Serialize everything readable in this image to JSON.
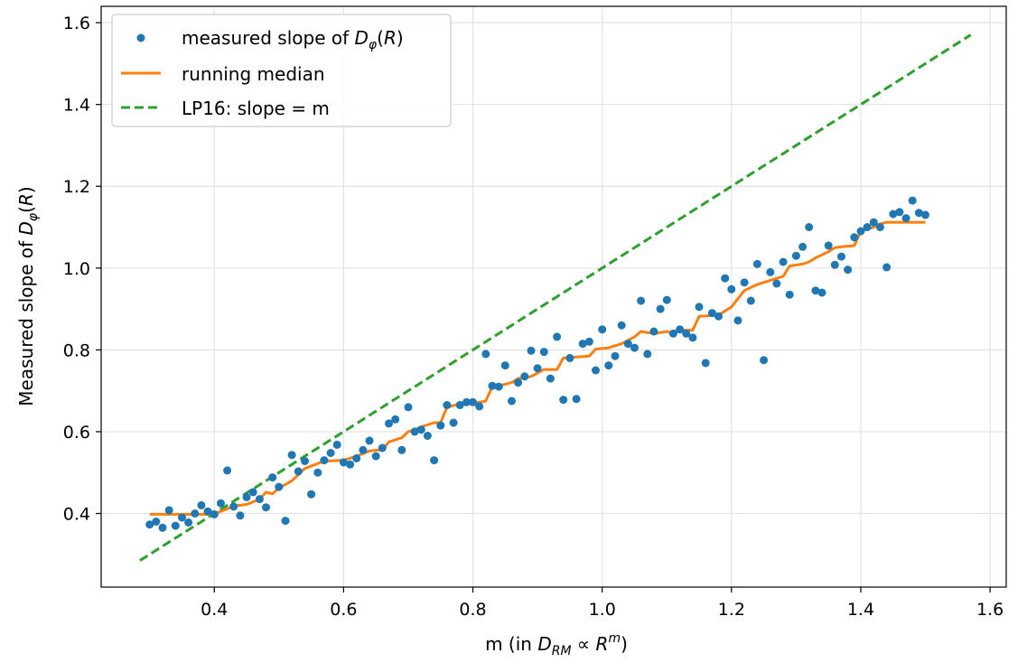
{
  "chart_data": {
    "type": "scatter",
    "xlabel": "m  (in D_RM ∝ R^m)",
    "ylabel": "Measured slope of D_φ(R)",
    "xlim": [
      0.225,
      1.625
    ],
    "ylim": [
      0.22,
      1.64
    ],
    "xticks": [
      0.4,
      0.6,
      0.8,
      1.0,
      1.2,
      1.4,
      1.6
    ],
    "yticks": [
      0.4,
      0.6,
      0.8,
      1.0,
      1.2,
      1.4,
      1.6
    ],
    "xtick_labels": [
      "0.4",
      "0.6",
      "0.8",
      "1.0",
      "1.2",
      "1.4",
      "1.6"
    ],
    "ytick_labels": [
      "0.4",
      "0.6",
      "0.8",
      "1.0",
      "1.2",
      "1.4",
      "1.6"
    ],
    "grid": true,
    "legend": {
      "position": "upper-left",
      "entries": [
        {
          "label": "measured slope of D_φ(R)",
          "marker": "dot",
          "color": "#1f77b4"
        },
        {
          "label": "running median",
          "marker": "solid-line",
          "color": "#ff7f0e"
        },
        {
          "label": "LP16: slope = m",
          "marker": "dashed-line",
          "color": "#2ca02c"
        }
      ]
    },
    "series": [
      {
        "name": "measured slope of D_φ(R)",
        "kind": "scatter",
        "color": "#1f77b4",
        "points": [
          [
            0.3,
            0.373
          ],
          [
            0.31,
            0.38
          ],
          [
            0.32,
            0.365
          ],
          [
            0.33,
            0.408
          ],
          [
            0.34,
            0.37
          ],
          [
            0.35,
            0.39
          ],
          [
            0.36,
            0.378
          ],
          [
            0.37,
            0.4
          ],
          [
            0.38,
            0.42
          ],
          [
            0.39,
            0.405
          ],
          [
            0.4,
            0.398
          ],
          [
            0.41,
            0.425
          ],
          [
            0.42,
            0.505
          ],
          [
            0.43,
            0.417
          ],
          [
            0.44,
            0.395
          ],
          [
            0.45,
            0.44
          ],
          [
            0.46,
            0.452
          ],
          [
            0.47,
            0.435
          ],
          [
            0.48,
            0.415
          ],
          [
            0.49,
            0.488
          ],
          [
            0.5,
            0.465
          ],
          [
            0.51,
            0.382
          ],
          [
            0.52,
            0.543
          ],
          [
            0.53,
            0.503
          ],
          [
            0.54,
            0.528
          ],
          [
            0.55,
            0.447
          ],
          [
            0.56,
            0.5
          ],
          [
            0.57,
            0.53
          ],
          [
            0.58,
            0.548
          ],
          [
            0.59,
            0.568
          ],
          [
            0.6,
            0.525
          ],
          [
            0.61,
            0.52
          ],
          [
            0.62,
            0.535
          ],
          [
            0.63,
            0.555
          ],
          [
            0.64,
            0.578
          ],
          [
            0.65,
            0.54
          ],
          [
            0.66,
            0.56
          ],
          [
            0.67,
            0.62
          ],
          [
            0.68,
            0.63
          ],
          [
            0.69,
            0.555
          ],
          [
            0.7,
            0.66
          ],
          [
            0.71,
            0.6
          ],
          [
            0.72,
            0.605
          ],
          [
            0.73,
            0.59
          ],
          [
            0.74,
            0.53
          ],
          [
            0.75,
            0.615
          ],
          [
            0.76,
            0.665
          ],
          [
            0.77,
            0.622
          ],
          [
            0.78,
            0.665
          ],
          [
            0.79,
            0.672
          ],
          [
            0.8,
            0.672
          ],
          [
            0.81,
            0.662
          ],
          [
            0.82,
            0.79
          ],
          [
            0.83,
            0.712
          ],
          [
            0.84,
            0.71
          ],
          [
            0.85,
            0.762
          ],
          [
            0.86,
            0.675
          ],
          [
            0.87,
            0.72
          ],
          [
            0.88,
            0.735
          ],
          [
            0.89,
            0.798
          ],
          [
            0.9,
            0.755
          ],
          [
            0.91,
            0.795
          ],
          [
            0.92,
            0.73
          ],
          [
            0.93,
            0.832
          ],
          [
            0.94,
            0.678
          ],
          [
            0.95,
            0.78
          ],
          [
            0.96,
            0.68
          ],
          [
            0.97,
            0.815
          ],
          [
            0.98,
            0.82
          ],
          [
            0.99,
            0.75
          ],
          [
            1.0,
            0.85
          ],
          [
            1.01,
            0.762
          ],
          [
            1.02,
            0.785
          ],
          [
            1.03,
            0.86
          ],
          [
            1.04,
            0.815
          ],
          [
            1.05,
            0.805
          ],
          [
            1.06,
            0.92
          ],
          [
            1.07,
            0.79
          ],
          [
            1.08,
            0.845
          ],
          [
            1.09,
            0.9
          ],
          [
            1.1,
            0.922
          ],
          [
            1.11,
            0.84
          ],
          [
            1.12,
            0.85
          ],
          [
            1.13,
            0.84
          ],
          [
            1.14,
            0.83
          ],
          [
            1.15,
            0.905
          ],
          [
            1.16,
            0.768
          ],
          [
            1.17,
            0.89
          ],
          [
            1.18,
            0.882
          ],
          [
            1.19,
            0.975
          ],
          [
            1.2,
            0.948
          ],
          [
            1.21,
            0.872
          ],
          [
            1.22,
            0.965
          ],
          [
            1.23,
            0.92
          ],
          [
            1.24,
            1.01
          ],
          [
            1.25,
            0.775
          ],
          [
            1.26,
            0.99
          ],
          [
            1.27,
            0.962
          ],
          [
            1.28,
            1.015
          ],
          [
            1.29,
            0.935
          ],
          [
            1.3,
            1.03
          ],
          [
            1.31,
            1.052
          ],
          [
            1.32,
            1.1
          ],
          [
            1.33,
            0.945
          ],
          [
            1.34,
            0.94
          ],
          [
            1.35,
            1.055
          ],
          [
            1.36,
            1.008
          ],
          [
            1.37,
            1.028
          ],
          [
            1.38,
            0.996
          ],
          [
            1.39,
            1.075
          ],
          [
            1.4,
            1.09
          ],
          [
            1.41,
            1.1
          ],
          [
            1.42,
            1.112
          ],
          [
            1.43,
            1.1
          ],
          [
            1.44,
            1.002
          ],
          [
            1.45,
            1.132
          ],
          [
            1.46,
            1.137
          ],
          [
            1.47,
            1.122
          ],
          [
            1.48,
            1.165
          ],
          [
            1.49,
            1.135
          ],
          [
            1.5,
            1.13
          ]
        ]
      },
      {
        "name": "running median",
        "kind": "line",
        "color": "#ff7f0e",
        "points": [
          [
            0.3,
            0.398
          ],
          [
            0.4,
            0.398
          ],
          [
            0.41,
            0.405
          ],
          [
            0.43,
            0.418
          ],
          [
            0.45,
            0.422
          ],
          [
            0.47,
            0.435
          ],
          [
            0.48,
            0.452
          ],
          [
            0.49,
            0.448
          ],
          [
            0.5,
            0.462
          ],
          [
            0.52,
            0.48
          ],
          [
            0.54,
            0.51
          ],
          [
            0.56,
            0.522
          ],
          [
            0.57,
            0.528
          ],
          [
            0.6,
            0.53
          ],
          [
            0.62,
            0.54
          ],
          [
            0.64,
            0.553
          ],
          [
            0.66,
            0.556
          ],
          [
            0.67,
            0.575
          ],
          [
            0.69,
            0.585
          ],
          [
            0.7,
            0.6
          ],
          [
            0.71,
            0.605
          ],
          [
            0.72,
            0.612
          ],
          [
            0.74,
            0.622
          ],
          [
            0.75,
            0.622
          ],
          [
            0.76,
            0.66
          ],
          [
            0.78,
            0.668
          ],
          [
            0.81,
            0.672
          ],
          [
            0.82,
            0.675
          ],
          [
            0.83,
            0.71
          ],
          [
            0.84,
            0.712
          ],
          [
            0.86,
            0.72
          ],
          [
            0.87,
            0.73
          ],
          [
            0.89,
            0.735
          ],
          [
            0.91,
            0.752
          ],
          [
            0.93,
            0.752
          ],
          [
            0.94,
            0.78
          ],
          [
            0.98,
            0.785
          ],
          [
            0.99,
            0.802
          ],
          [
            1.01,
            0.805
          ],
          [
            1.03,
            0.815
          ],
          [
            1.05,
            0.832
          ],
          [
            1.06,
            0.845
          ],
          [
            1.08,
            0.84
          ],
          [
            1.1,
            0.845
          ],
          [
            1.11,
            0.84
          ],
          [
            1.12,
            0.848
          ],
          [
            1.14,
            0.848
          ],
          [
            1.15,
            0.882
          ],
          [
            1.18,
            0.885
          ],
          [
            1.2,
            0.905
          ],
          [
            1.22,
            0.945
          ],
          [
            1.24,
            0.96
          ],
          [
            1.25,
            0.965
          ],
          [
            1.28,
            0.98
          ],
          [
            1.29,
            1.005
          ],
          [
            1.31,
            1.01
          ],
          [
            1.32,
            1.015
          ],
          [
            1.33,
            1.025
          ],
          [
            1.35,
            1.04
          ],
          [
            1.36,
            1.05
          ],
          [
            1.37,
            1.052
          ],
          [
            1.39,
            1.055
          ],
          [
            1.4,
            1.09
          ],
          [
            1.42,
            1.1
          ],
          [
            1.43,
            1.108
          ],
          [
            1.44,
            1.112
          ],
          [
            1.5,
            1.112
          ]
        ]
      },
      {
        "name": "LP16: slope = m",
        "kind": "dashed-line",
        "color": "#2ca02c",
        "points": [
          [
            0.285,
            0.285
          ],
          [
            1.57,
            1.57
          ]
        ]
      }
    ]
  }
}
